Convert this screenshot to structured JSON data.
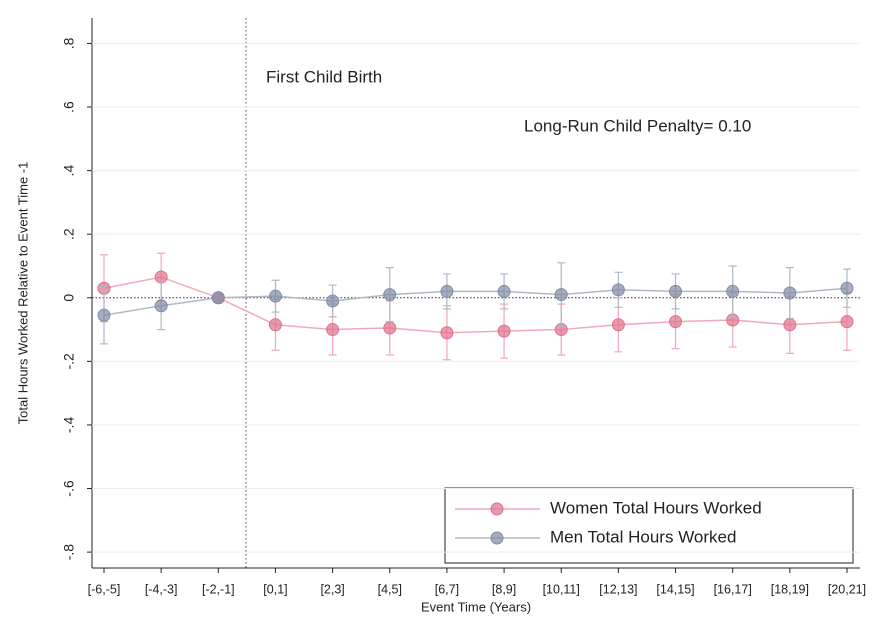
{
  "chart_data": {
    "type": "line",
    "x_label": "Event Time (Years)",
    "y_label": "Total Hours Worked Relative to Event Time -1",
    "annotations": [
      "First Child Birth",
      "Long-Run Child Penalty= 0.10"
    ],
    "categories": [
      "[-6,-5]",
      "[-4,-3]",
      "[-2,-1]",
      "[0,1]",
      "[2,3]",
      "[4,5]",
      "[6,7]",
      "[8,9]",
      "[10,11]",
      "[12,13]",
      "[14,15]",
      "[16,17]",
      "[18,19]",
      "[20,21]"
    ],
    "series": [
      {
        "name": "Women Total Hours Worked",
        "color": "#e0708c",
        "values": [
          0.03,
          0.065,
          0,
          -0.085,
          -0.1,
          -0.095,
          -0.11,
          -0.105,
          -0.1,
          -0.085,
          -0.075,
          -0.07,
          -0.085,
          -0.075
        ],
        "errors": [
          0.105,
          0.075,
          0,
          0.08,
          0.08,
          0.085,
          0.085,
          0.085,
          0.08,
          0.085,
          0.085,
          0.085,
          0.09,
          0.09
        ]
      },
      {
        "name": "Men Total Hours Worked",
        "color": "#7f8ca4",
        "values": [
          -0.055,
          -0.025,
          0,
          0.005,
          -0.01,
          0.01,
          0.02,
          0.02,
          0.01,
          0.025,
          0.02,
          0.02,
          0.015,
          0.03
        ],
        "errors": [
          0.09,
          0.075,
          0,
          0.05,
          0.05,
          0.085,
          0.055,
          0.055,
          0.1,
          0.055,
          0.055,
          0.08,
          0.08,
          0.06
        ]
      }
    ],
    "ylim": [
      -0.85,
      0.88
    ],
    "yticks": [
      {
        "value": 0.8,
        "label": ".8"
      },
      {
        "value": 0.6,
        "label": ".6"
      },
      {
        "value": 0.4,
        "label": ".4"
      },
      {
        "value": 0.2,
        "label": ".2"
      },
      0,
      {
        "value": -0.2,
        "label": "-.2"
      },
      {
        "value": -0.4,
        "label": "-.4"
      },
      {
        "value": -0.6,
        "label": "-.6"
      },
      {
        "value": -0.8,
        "label": "-.8"
      }
    ],
    "grid": true,
    "legend": "lower right"
  }
}
